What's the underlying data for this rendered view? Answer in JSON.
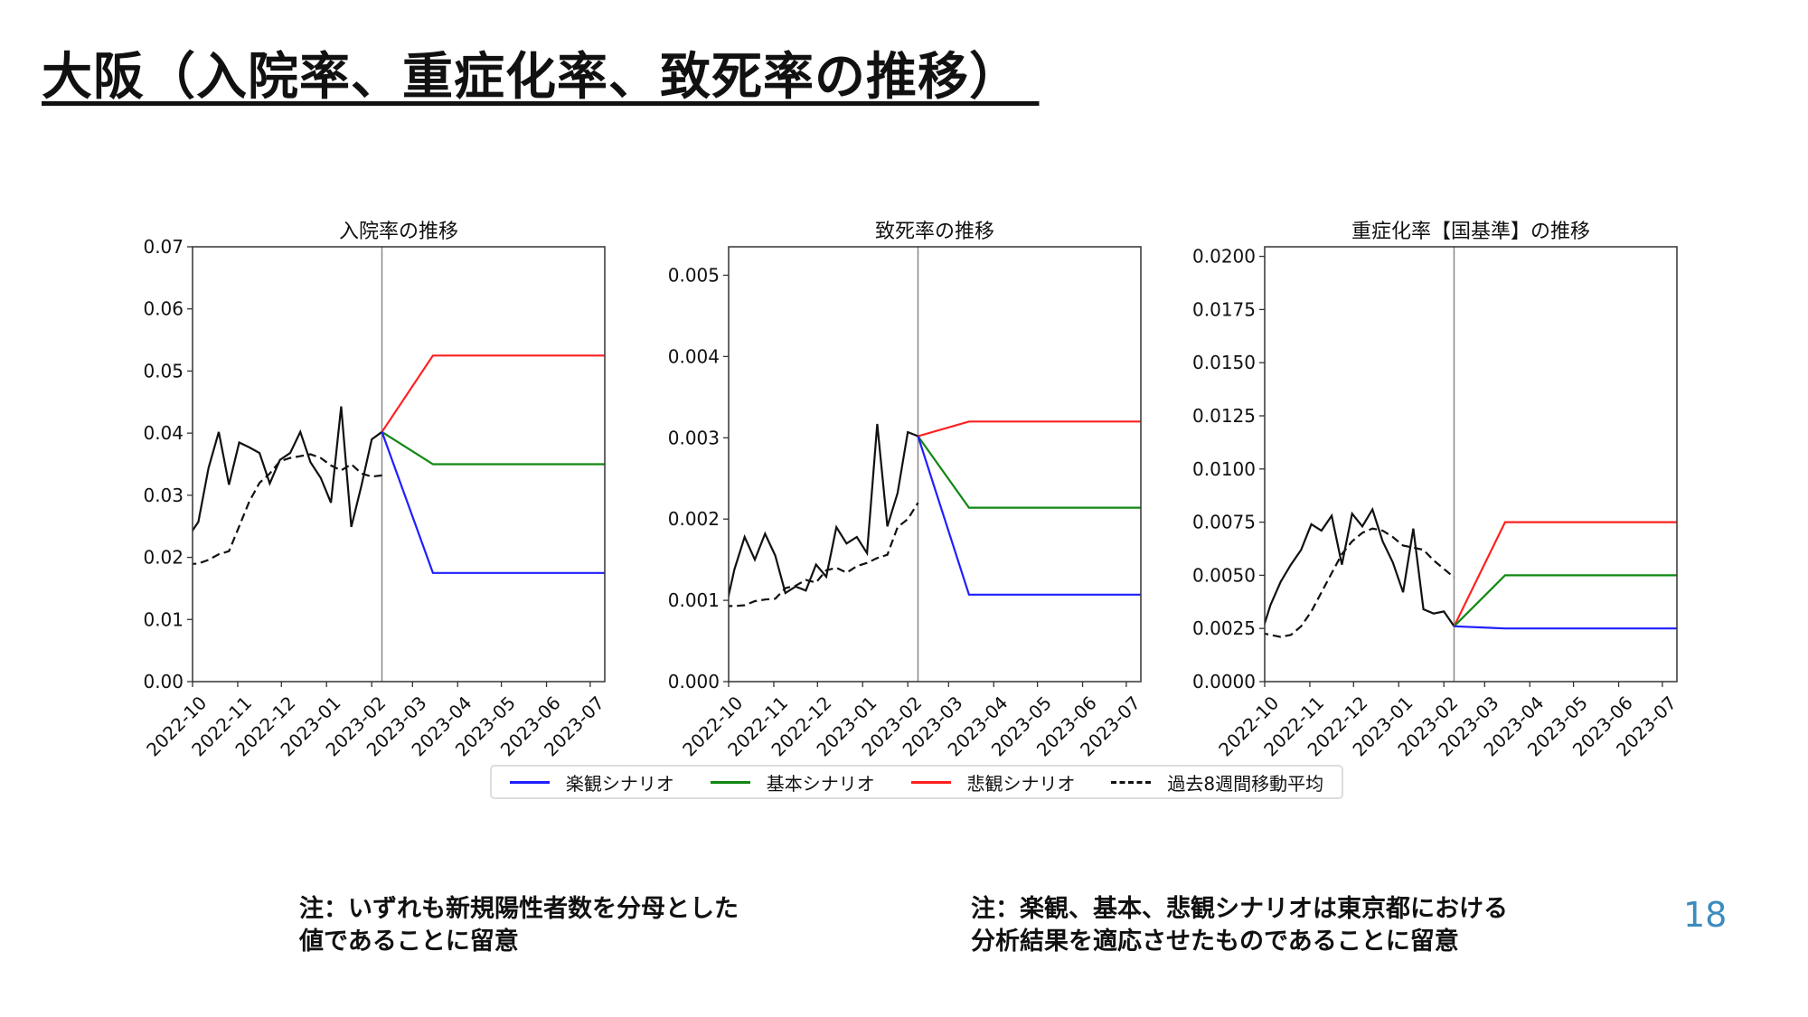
{
  "title": "大阪（入院率、重症化率、致死率の推移）",
  "x_ticks": [
    "2022-10",
    "2022-11",
    "2022-12",
    "2023-01",
    "2023-02",
    "2023-03",
    "2023-04",
    "2023-05",
    "2023-06",
    "2023-07"
  ],
  "legend": [
    {
      "label": "楽観シナリオ",
      "color": "#1f1fff",
      "style": "solid"
    },
    {
      "label": "基本シナリオ",
      "color": "#118811",
      "style": "solid"
    },
    {
      "label": "悲観シナリオ",
      "color": "#ff2020",
      "style": "solid"
    },
    {
      "label": "過去8週間移動平均",
      "color": "#111111",
      "style": "dashed"
    }
  ],
  "notes": {
    "left": [
      "注：いずれも新規陽性者数を分母とした",
      "値であることに留意"
    ],
    "right": [
      "注：楽観、基本、悲観シナリオは東京都における",
      "分析結果を適応させたものであることに留意"
    ]
  },
  "page_number": "18",
  "chart_data": [
    {
      "type": "line",
      "title": "入院率の推移",
      "xlim": [
        "2022-10-01",
        "2023-07-11"
      ],
      "ylim": [
        0,
        0.07
      ],
      "y_ticks": [
        "0.00",
        "0.01",
        "0.02",
        "0.03",
        "0.04",
        "0.05",
        "0.06",
        "0.07"
      ],
      "y_tick_values": [
        0,
        0.01,
        0.02,
        0.03,
        0.04,
        0.05,
        0.06,
        0.07
      ],
      "vline": "2023-02-08",
      "dates": [
        "2022-09-28",
        "2022-10-05",
        "2022-10-12",
        "2022-10-19",
        "2022-10-26",
        "2022-11-02",
        "2022-11-09",
        "2022-11-16",
        "2022-11-23",
        "2022-11-30",
        "2022-12-07",
        "2022-12-14",
        "2022-12-21",
        "2022-12-28",
        "2023-01-04",
        "2023-01-11",
        "2023-01-18",
        "2023-01-25",
        "2023-02-01",
        "2023-02-08"
      ],
      "observed": [
        0.0233,
        0.0257,
        0.0344,
        0.0402,
        0.0317,
        0.0385,
        0.0377,
        0.0368,
        0.0319,
        0.0357,
        0.0368,
        0.0402,
        0.0353,
        0.0328,
        0.0288,
        0.0443,
        0.0249,
        0.0316,
        0.039,
        0.0402
      ],
      "moving_avg": [
        0.0189,
        0.019,
        0.0196,
        0.0205,
        0.021,
        0.025,
        0.029,
        0.032,
        0.0335,
        0.0355,
        0.036,
        0.0363,
        0.0366,
        0.036,
        0.0348,
        0.034,
        0.035,
        0.0335,
        0.033,
        0.0332
      ],
      "scenario_dates": [
        "2023-02-08",
        "2023-03-15",
        "2023-07-11"
      ],
      "scenarios": {
        "optimistic": [
          0.0402,
          0.0175,
          0.0175
        ],
        "base": [
          0.0402,
          0.035,
          0.035
        ],
        "pessimistic": [
          0.0402,
          0.0525,
          0.0525
        ]
      }
    },
    {
      "type": "line",
      "title": "致死率の推移",
      "xlim": [
        "2022-10-01",
        "2023-07-11"
      ],
      "ylim": [
        0,
        0.00535
      ],
      "y_ticks": [
        "0.000",
        "0.001",
        "0.002",
        "0.003",
        "0.004",
        "0.005"
      ],
      "y_tick_values": [
        0,
        0.001,
        0.002,
        0.003,
        0.004,
        0.005
      ],
      "vline": "2023-02-08",
      "dates": [
        "2022-09-28",
        "2022-10-05",
        "2022-10-12",
        "2022-10-19",
        "2022-10-26",
        "2022-11-02",
        "2022-11-09",
        "2022-11-16",
        "2022-11-23",
        "2022-11-30",
        "2022-12-07",
        "2022-12-14",
        "2022-12-21",
        "2022-12-28",
        "2023-01-04",
        "2023-01-11",
        "2023-01-18",
        "2023-01-25",
        "2023-02-01",
        "2023-02-08"
      ],
      "observed": [
        0.00082,
        0.00138,
        0.00178,
        0.0015,
        0.00182,
        0.00155,
        0.00109,
        0.00117,
        0.00112,
        0.00144,
        0.00129,
        0.0019,
        0.0017,
        0.00178,
        0.00158,
        0.00317,
        0.00191,
        0.00232,
        0.00307,
        0.00302
      ],
      "moving_avg": [
        0.00093,
        0.00093,
        0.00094,
        0.00099,
        0.00101,
        0.00102,
        0.00115,
        0.00118,
        0.00125,
        0.00122,
        0.00137,
        0.0014,
        0.00134,
        0.00142,
        0.00146,
        0.00152,
        0.00156,
        0.0019,
        0.002,
        0.0022
      ],
      "scenario_dates": [
        "2023-02-08",
        "2023-03-15",
        "2023-07-11"
      ],
      "scenarios": {
        "optimistic": [
          0.00302,
          0.00107,
          0.00107
        ],
        "base": [
          0.00302,
          0.00214,
          0.00214
        ],
        "pessimistic": [
          0.00302,
          0.0032,
          0.0032
        ]
      }
    },
    {
      "type": "line",
      "title": "重症化率【国基準】の推移",
      "xlim": [
        "2022-10-01",
        "2023-07-11"
      ],
      "ylim": [
        0,
        0.02045
      ],
      "y_ticks": [
        "0.0000",
        "0.0025",
        "0.0050",
        "0.0075",
        "0.0100",
        "0.0125",
        "0.0150",
        "0.0175",
        "0.0200"
      ],
      "y_tick_values": [
        0,
        0.0025,
        0.005,
        0.0075,
        0.01,
        0.0125,
        0.015,
        0.0175,
        0.02
      ],
      "vline": "2023-02-08",
      "dates": [
        "2022-09-28",
        "2022-10-05",
        "2022-10-12",
        "2022-10-19",
        "2022-10-26",
        "2022-11-02",
        "2022-11-09",
        "2022-11-16",
        "2022-11-23",
        "2022-11-30",
        "2022-12-07",
        "2022-12-14",
        "2022-12-21",
        "2022-12-28",
        "2023-01-04",
        "2023-01-11",
        "2023-01-18",
        "2023-01-25",
        "2023-02-01",
        "2023-02-08"
      ],
      "observed": [
        0.0021,
        0.0036,
        0.0047,
        0.0055,
        0.0062,
        0.0074,
        0.0071,
        0.0078,
        0.0055,
        0.0079,
        0.0073,
        0.0081,
        0.0066,
        0.0056,
        0.0042,
        0.0072,
        0.0034,
        0.0032,
        0.0033,
        0.0026
      ],
      "moving_avg": [
        0.0023,
        0.0022,
        0.0021,
        0.0022,
        0.0026,
        0.0033,
        0.0042,
        0.0051,
        0.006,
        0.0066,
        0.007,
        0.0072,
        0.0071,
        0.0068,
        0.0064,
        0.0063,
        0.0062,
        0.0057,
        0.0053,
        0.0049
      ],
      "scenario_dates": [
        "2023-02-08",
        "2023-03-15",
        "2023-07-11"
      ],
      "scenarios": {
        "optimistic": [
          0.0026,
          0.0025,
          0.0025
        ],
        "base": [
          0.0026,
          0.005,
          0.005
        ],
        "pessimistic": [
          0.0026,
          0.0075,
          0.0075
        ]
      }
    }
  ]
}
